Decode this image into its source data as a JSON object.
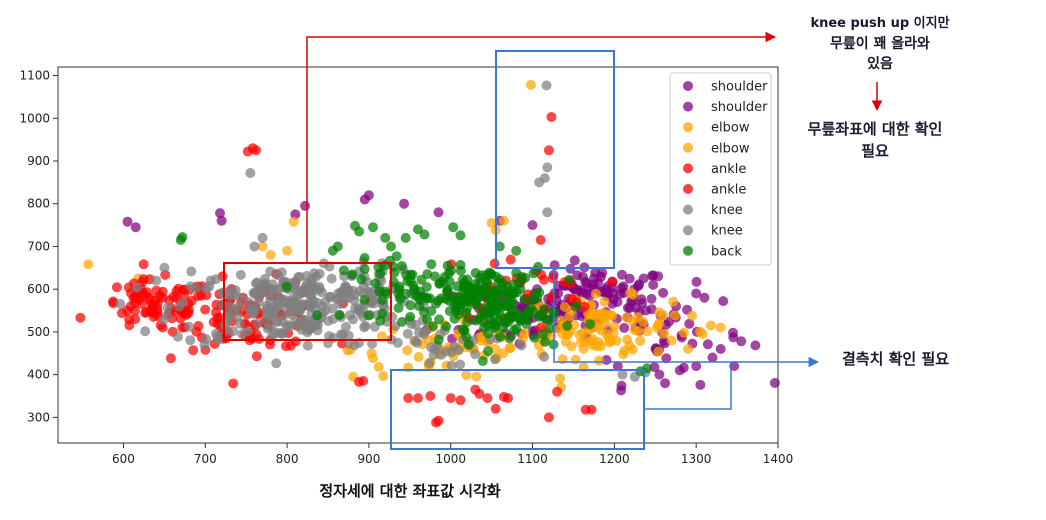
{
  "chart_data": {
    "type": "scatter",
    "title": "",
    "xlabel": "",
    "ylabel": "",
    "xlim": [
      520,
      1400
    ],
    "ylim": [
      240,
      1120
    ],
    "xticks": [
      600,
      700,
      800,
      900,
      1000,
      1100,
      1200,
      1300,
      1400
    ],
    "yticks": [
      300,
      400,
      500,
      600,
      700,
      800,
      900,
      1000,
      1100
    ],
    "grid": false,
    "legend_position": "top-right",
    "legend": [
      "shoulder",
      "shoulder",
      "elbow",
      "elbow",
      "ankle",
      "ankle",
      "knee",
      "knee",
      "back"
    ],
    "series": [
      {
        "name": "shoulder",
        "color": "#800080",
        "clusters": [
          {
            "cx": 1180,
            "cy": 580,
            "sx": 45,
            "sy": 35,
            "n": 110
          },
          {
            "cx": 1080,
            "cy": 540,
            "sx": 50,
            "sy": 40,
            "n": 50
          },
          {
            "cx": 1260,
            "cy": 490,
            "sx": 50,
            "sy": 55,
            "n": 40
          }
        ],
        "points": [
          [
            605,
            758
          ],
          [
            615,
            745
          ],
          [
            718,
            778
          ],
          [
            720,
            760
          ],
          [
            810,
            775
          ],
          [
            822,
            795
          ],
          [
            895,
            810
          ],
          [
            900,
            820
          ],
          [
            943,
            800
          ],
          [
            985,
            780
          ],
          [
            1060,
            760
          ],
          [
            1100,
            750
          ],
          [
            1300,
            590
          ],
          [
            1310,
            580
          ],
          [
            1345,
            498
          ],
          [
            1355,
            478
          ],
          [
            1300,
            420
          ],
          [
            1320,
            440
          ],
          [
            1330,
            460
          ],
          [
            1280,
            410
          ],
          [
            1262,
            380
          ],
          [
            1255,
            400
          ]
        ]
      },
      {
        "name": "elbow",
        "color": "#FFA500",
        "clusters": [
          {
            "cx": 1180,
            "cy": 510,
            "sx": 45,
            "sy": 35,
            "n": 100
          },
          {
            "cx": 1000,
            "cy": 460,
            "sx": 60,
            "sy": 35,
            "n": 60
          }
        ],
        "points": [
          [
            557,
            658
          ],
          [
            618,
            625
          ],
          [
            1098,
            1078
          ],
          [
            1050,
            755
          ],
          [
            1065,
            760
          ],
          [
            1055,
            738
          ],
          [
            808,
            758
          ],
          [
            1295,
            538
          ],
          [
            1318,
            515
          ],
          [
            1308,
            495
          ],
          [
            1330,
            510
          ],
          [
            1285,
            498
          ],
          [
            1270,
            480
          ],
          [
            1290,
            460
          ],
          [
            780,
            680
          ],
          [
            800,
            690
          ],
          [
            770,
            700
          ]
        ]
      },
      {
        "name": "ankle",
        "color": "#FF0000",
        "clusters": [
          {
            "cx": 640,
            "cy": 560,
            "sx": 35,
            "sy": 30,
            "n": 80
          },
          {
            "cx": 760,
            "cy": 540,
            "sx": 45,
            "sy": 40,
            "n": 100
          },
          {
            "cx": 1080,
            "cy": 600,
            "sx": 50,
            "sy": 40,
            "n": 30
          }
        ],
        "points": [
          [
            752,
            922
          ],
          [
            758,
            930
          ],
          [
            762,
            925
          ],
          [
            1120,
            925
          ],
          [
            1123,
            1003
          ],
          [
            1110,
            715
          ],
          [
            893,
            385
          ],
          [
            888,
            383
          ],
          [
            960,
            345
          ],
          [
            975,
            350
          ],
          [
            982,
            288
          ],
          [
            985,
            292
          ],
          [
            1000,
            345
          ],
          [
            1012,
            340
          ],
          [
            1030,
            365
          ],
          [
            1035,
            355
          ],
          [
            1045,
            345
          ],
          [
            1065,
            348
          ],
          [
            1070,
            345
          ],
          [
            1120,
            300
          ],
          [
            1165,
            318
          ],
          [
            1172,
            318
          ],
          [
            1130,
            360
          ],
          [
            948,
            345
          ],
          [
            1055,
            320
          ]
        ]
      },
      {
        "name": "knee",
        "color": "#808080",
        "clusters": [
          {
            "cx": 800,
            "cy": 555,
            "sx": 70,
            "sy": 45,
            "n": 230
          },
          {
            "cx": 860,
            "cy": 600,
            "sx": 40,
            "sy": 30,
            "n": 60
          },
          {
            "cx": 1000,
            "cy": 470,
            "sx": 50,
            "sy": 30,
            "n": 40
          }
        ],
        "points": [
          [
            1117,
            1077
          ],
          [
            1108,
            850
          ],
          [
            1118,
            885
          ],
          [
            1115,
            860
          ],
          [
            1118,
            780
          ],
          [
            755,
            872
          ],
          [
            760,
            700
          ],
          [
            770,
            720
          ],
          [
            650,
            650
          ],
          [
            640,
            620
          ],
          [
            1210,
            400
          ],
          [
            1225,
            395
          ],
          [
            1238,
            405
          ]
        ]
      },
      {
        "name": "back",
        "color": "#008000",
        "clusters": [
          {
            "cx": 1040,
            "cy": 580,
            "sx": 40,
            "sy": 35,
            "n": 160
          },
          {
            "cx": 950,
            "cy": 600,
            "sx": 40,
            "sy": 35,
            "n": 60
          },
          {
            "cx": 1090,
            "cy": 520,
            "sx": 40,
            "sy": 30,
            "n": 40
          }
        ],
        "points": [
          [
            670,
            715
          ],
          [
            672,
            722
          ],
          [
            883,
            748
          ],
          [
            888,
            735
          ],
          [
            905,
            745
          ],
          [
            920,
            720
          ],
          [
            927,
            700
          ],
          [
            945,
            720
          ],
          [
            960,
            740
          ],
          [
            968,
            728
          ],
          [
            1003,
            745
          ],
          [
            1012,
            726
          ],
          [
            1060,
            700
          ],
          [
            1080,
            690
          ],
          [
            856,
            690
          ],
          [
            862,
            700
          ],
          [
            1232,
            408
          ],
          [
            1240,
            415
          ]
        ]
      }
    ]
  },
  "annotations": {
    "knee_note_line1": "knee push up 이지만",
    "knee_note_line2": "무릎이 꽤 올라와",
    "knee_note_line3": "있음",
    "confirm_line1": "무릎좌표에 대한 확인",
    "confirm_line2": "필요",
    "missing_note": "결측치 확인 필요",
    "caption": "정자세에 대한 좌표값 시각화"
  },
  "colors": {
    "red_box": "#E00000",
    "blue_box": "#3B78D6",
    "axes": "#333333"
  }
}
